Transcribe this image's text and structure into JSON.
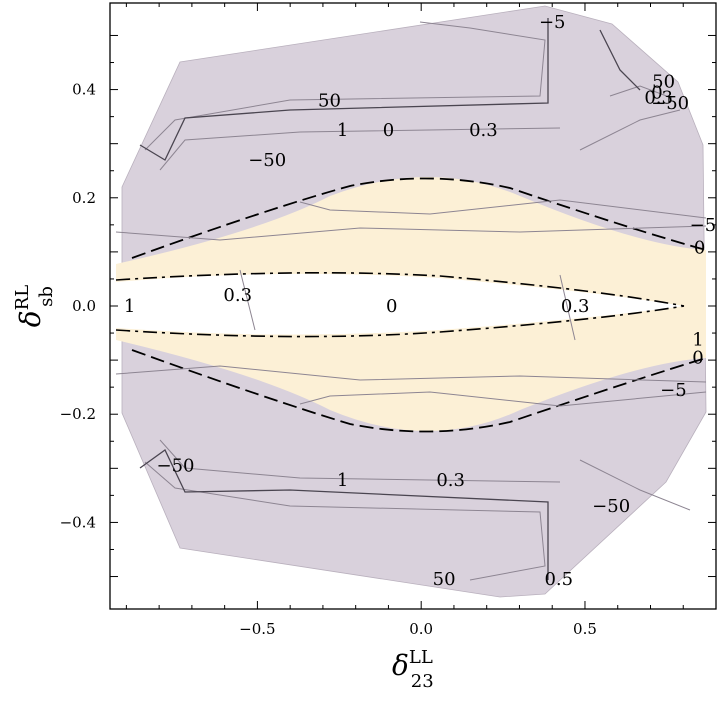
{
  "chart_data": {
    "type": "contour",
    "x_axis": {
      "range": [
        -0.95,
        0.9
      ],
      "ticks": [
        -0.5,
        0.0,
        0.5
      ],
      "tick_labels": [
        "−0.5",
        "0.0",
        "0.5"
      ],
      "label_symbol": "δ",
      "label_sup": "LL",
      "label_sub": "23"
    },
    "y_axis": {
      "range": [
        -0.56,
        0.56
      ],
      "ticks": [
        0.4,
        0.2,
        0.0,
        -0.2,
        -0.4
      ],
      "tick_labels": [
        "0.4",
        "0.2",
        "0.0",
        "−0.2",
        "−0.4"
      ],
      "label_symbol": "δ",
      "label_sup": "RL",
      "label_sub": "sb"
    },
    "regions": [
      {
        "name": "allowed-outer",
        "color": "#d9d1dc"
      },
      {
        "name": "allowed-inner",
        "color": "#fcf0d6"
      },
      {
        "name": "excluded-center",
        "color": "#ffffff"
      }
    ],
    "contour_labels": [
      {
        "text": "−5",
        "x": 0.4,
        "y": 0.525
      },
      {
        "text": "50",
        "x": 0.74,
        "y": 0.415
      },
      {
        "text": "0",
        "x": 0.72,
        "y": 0.395
      },
      {
        "text": "0.3",
        "x": 0.725,
        "y": 0.385
      },
      {
        "text": "−50",
        "x": 0.76,
        "y": 0.375
      },
      {
        "text": "50",
        "x": -0.28,
        "y": 0.38
      },
      {
        "text": "1",
        "x": -0.24,
        "y": 0.325
      },
      {
        "text": "0",
        "x": -0.1,
        "y": 0.325
      },
      {
        "text": "0.3",
        "x": 0.19,
        "y": 0.325
      },
      {
        "text": "−50",
        "x": -0.47,
        "y": 0.27
      },
      {
        "text": "−5",
        "x": 0.86,
        "y": 0.15
      },
      {
        "text": "0",
        "x": 0.85,
        "y": 0.108
      },
      {
        "text": "1",
        "x": -0.89,
        "y": 0.0
      },
      {
        "text": "0.3",
        "x": -0.56,
        "y": 0.02
      },
      {
        "text": "0",
        "x": -0.09,
        "y": 0.0
      },
      {
        "text": "0.3",
        "x": 0.47,
        "y": 0.0
      },
      {
        "text": "1",
        "x": 0.845,
        "y": -0.062
      },
      {
        "text": "0",
        "x": 0.845,
        "y": -0.095
      },
      {
        "text": "−5",
        "x": 0.77,
        "y": -0.155
      },
      {
        "text": "−50",
        "x": -0.75,
        "y": -0.295
      },
      {
        "text": "1",
        "x": -0.24,
        "y": -0.322
      },
      {
        "text": "0.3",
        "x": 0.09,
        "y": -0.322
      },
      {
        "text": "−50",
        "x": 0.58,
        "y": -0.37
      },
      {
        "text": "50",
        "x": 0.07,
        "y": -0.505
      },
      {
        "text": "0.5",
        "x": 0.42,
        "y": -0.505
      }
    ]
  }
}
